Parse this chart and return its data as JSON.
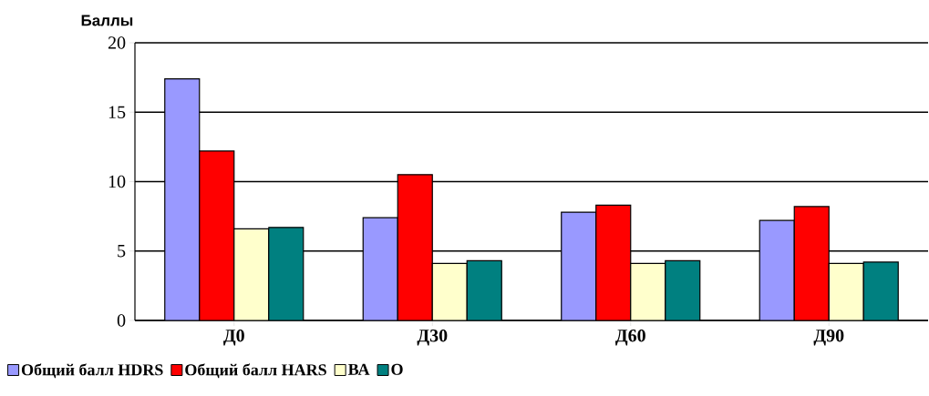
{
  "chart_data": {
    "type": "bar",
    "ylabel": "Баллы",
    "categories": [
      "Д0",
      "Д30",
      "Д60",
      "Д90"
    ],
    "series": [
      {
        "name": "Общий балл HDRS",
        "color": "#9999ff",
        "values": [
          17.4,
          7.4,
          7.8,
          7.2
        ]
      },
      {
        "name": "Общий балл HARS",
        "color": "#ff0000",
        "values": [
          12.2,
          10.5,
          8.3,
          8.2
        ]
      },
      {
        "name": "ВА",
        "color": "#ffffcc",
        "values": [
          6.6,
          4.1,
          4.1,
          4.1
        ]
      },
      {
        "name": "О",
        "color": "#008080",
        "values": [
          6.7,
          4.3,
          4.3,
          4.2
        ]
      }
    ],
    "ylim": [
      0,
      20
    ],
    "yticks": [
      0,
      5,
      10,
      15,
      20
    ],
    "grid": "y",
    "legend": "bottom left"
  }
}
